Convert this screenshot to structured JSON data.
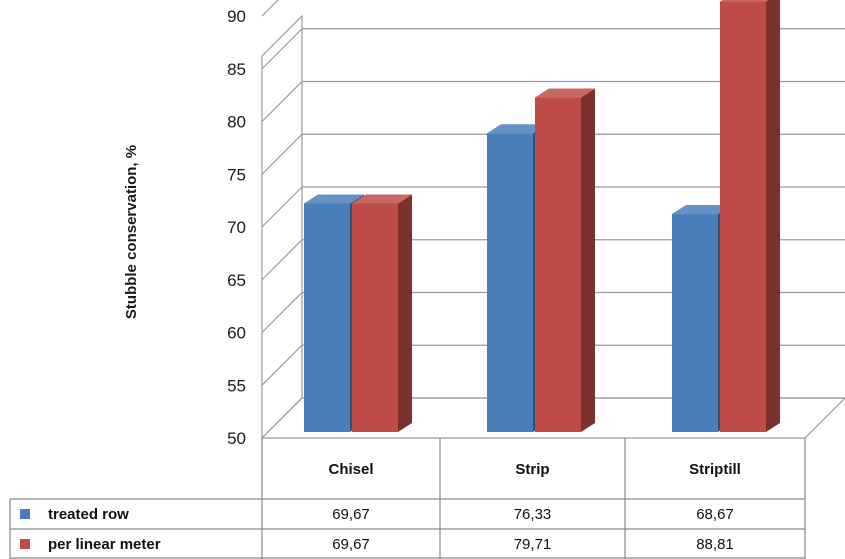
{
  "chart_data": {
    "type": "bar",
    "ylabel": "Stubble conservation, %",
    "ylim": [
      50,
      90
    ],
    "yticks": [
      50,
      55,
      60,
      65,
      70,
      75,
      80,
      85,
      90
    ],
    "categories": [
      "Chisel",
      "Strip",
      "Striptill"
    ],
    "series": [
      {
        "name": "treated row",
        "values": [
          69.67,
          76.33,
          68.67
        ],
        "labels": [
          "69,67",
          "76,33",
          "68,67"
        ],
        "color": "#4a7ebb"
      },
      {
        "name": "per linear meter",
        "values": [
          69.67,
          79.71,
          88.81
        ],
        "labels": [
          "69,67",
          "79,71",
          "88,81"
        ],
        "color": "#be4b48"
      }
    ],
    "grid": true,
    "style": "3d-clustered-bar-with-data-table"
  }
}
